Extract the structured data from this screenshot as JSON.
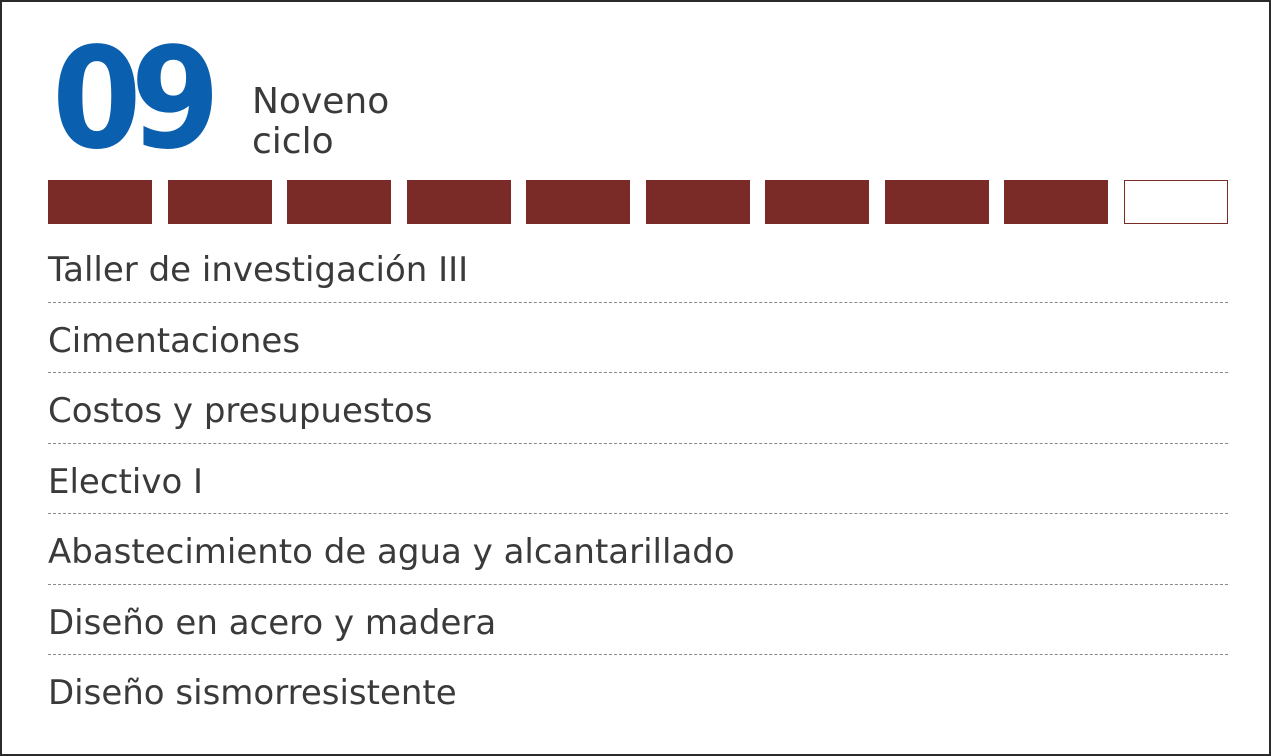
{
  "cycle": {
    "number": "09",
    "label_line1": "Noveno",
    "label_line2": "ciclo"
  },
  "progress": {
    "completed": 9,
    "total": 10,
    "filled_color": "#7b2b27",
    "empty_color": "#ffffff"
  },
  "colors": {
    "number": "#0a5fae",
    "text": "#3a3a3a",
    "divider": "#8a8a8a"
  },
  "courses": [
    {
      "name": "Taller de investigación III"
    },
    {
      "name": "Cimentaciones"
    },
    {
      "name": "Costos y presupuestos"
    },
    {
      "name": "Electivo I"
    },
    {
      "name": "Abastecimiento de agua y alcantarillado"
    },
    {
      "name": "Diseño en acero y madera"
    },
    {
      "name": "Diseño sismorresistente"
    }
  ]
}
